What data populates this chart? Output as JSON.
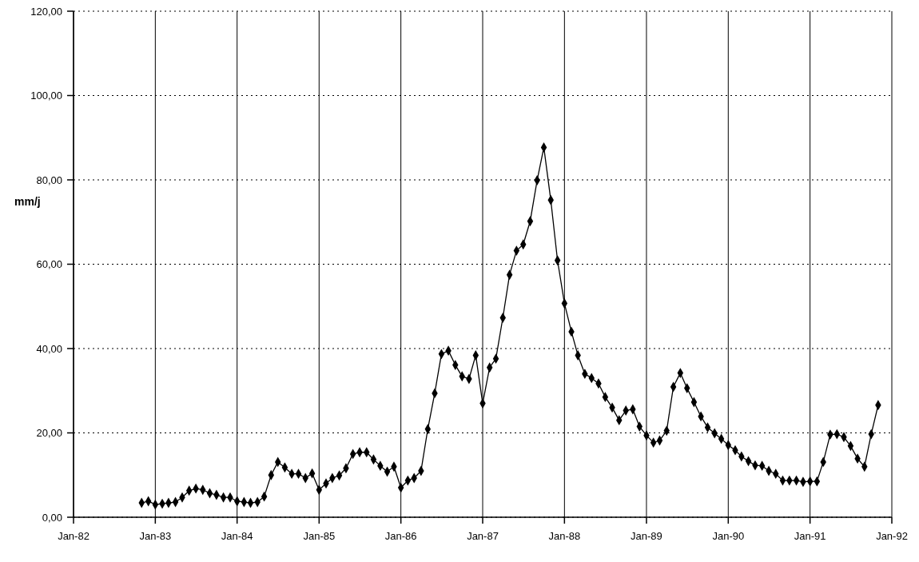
{
  "chart_data": {
    "type": "line",
    "ylabel": "mm/j",
    "x": [
      "1982-11",
      "1982-12",
      "1983-01",
      "1983-02",
      "1983-03",
      "1983-04",
      "1983-05",
      "1983-06",
      "1983-07",
      "1983-08",
      "1983-09",
      "1983-10",
      "1983-11",
      "1983-12",
      "1984-01",
      "1984-02",
      "1984-03",
      "1984-04",
      "1984-05",
      "1984-06",
      "1984-07",
      "1984-08",
      "1984-09",
      "1984-10",
      "1984-11",
      "1984-12",
      "1985-01",
      "1985-02",
      "1985-03",
      "1985-04",
      "1985-05",
      "1985-06",
      "1985-07",
      "1985-08",
      "1985-09",
      "1985-10",
      "1985-11",
      "1985-12",
      "1986-01",
      "1986-02",
      "1986-03",
      "1986-04",
      "1986-05",
      "1986-06",
      "1986-07",
      "1986-08",
      "1986-09",
      "1986-10",
      "1986-11",
      "1986-12",
      "1987-01",
      "1987-02",
      "1987-03",
      "1987-04",
      "1987-05",
      "1987-06",
      "1987-07",
      "1987-08",
      "1987-09",
      "1987-10",
      "1987-11",
      "1987-12",
      "1988-01",
      "1988-02",
      "1988-03",
      "1988-04",
      "1988-05",
      "1988-06",
      "1988-07",
      "1988-08",
      "1988-09",
      "1988-10",
      "1988-11",
      "1988-12",
      "1989-01",
      "1989-02",
      "1989-03",
      "1989-04",
      "1989-05",
      "1989-06",
      "1989-07",
      "1989-08",
      "1989-09",
      "1989-10",
      "1989-11",
      "1989-12",
      "1990-01",
      "1990-02",
      "1990-03",
      "1990-04",
      "1990-05",
      "1990-06",
      "1990-07",
      "1990-08",
      "1990-09",
      "1990-10",
      "1990-11",
      "1990-12",
      "1991-01",
      "1991-02",
      "1991-03",
      "1991-04",
      "1991-05",
      "1991-06",
      "1991-07",
      "1991-08",
      "1991-09",
      "1991-10",
      "1991-11"
    ],
    "series": [
      {
        "color": "#000000",
        "values": [
          3.4,
          3.8,
          3.0,
          3.2,
          3.4,
          3.6,
          4.7,
          6.3,
          6.8,
          6.5,
          5.7,
          5.3,
          4.7,
          4.7,
          3.8,
          3.6,
          3.4,
          3.6,
          4.9,
          10.0,
          13.1,
          11.8,
          10.3,
          10.3,
          9.3,
          10.4,
          6.5,
          8.0,
          9.3,
          9.9,
          11.6,
          15.0,
          15.4,
          15.4,
          13.7,
          12.2,
          10.8,
          12.0,
          7.0,
          8.7,
          9.3,
          11.0,
          20.9,
          29.4,
          38.7,
          39.5,
          36.1,
          33.4,
          32.8,
          38.4,
          27.0,
          35.5,
          37.6,
          47.3,
          57.5,
          63.2,
          64.7,
          70.2,
          79.9,
          87.7,
          75.2,
          60.9,
          50.7,
          44.0,
          38.4,
          34.0,
          33.0,
          31.7,
          28.5,
          26.0,
          23.0,
          25.3,
          25.6,
          21.5,
          19.4,
          17.7,
          18.2,
          20.5,
          30.9,
          34.2,
          30.6,
          27.3,
          23.9,
          21.3,
          19.9,
          18.6,
          17.1,
          15.9,
          14.4,
          13.3,
          12.3,
          12.2,
          11.0,
          10.3,
          8.7,
          8.7,
          8.7,
          8.4,
          8.5,
          8.5,
          13.1,
          19.6,
          19.7,
          19.0,
          16.9,
          13.9,
          12.0,
          19.7,
          26.6
        ]
      }
    ],
    "xlim": [
      "1982-01",
      "1992-01"
    ],
    "xticks": [
      {
        "value": "1982-01",
        "label": "Jan-82"
      },
      {
        "value": "1983-01",
        "label": "Jan-83"
      },
      {
        "value": "1984-01",
        "label": "Jan-84"
      },
      {
        "value": "1985-01",
        "label": "Jan-85"
      },
      {
        "value": "1986-01",
        "label": "Jan-86"
      },
      {
        "value": "1987-01",
        "label": "Jan-87"
      },
      {
        "value": "1988-01",
        "label": "Jan-88"
      },
      {
        "value": "1989-01",
        "label": "Jan-89"
      },
      {
        "value": "1990-01",
        "label": "Jan-90"
      },
      {
        "value": "1991-01",
        "label": "Jan-91"
      },
      {
        "value": "1992-01",
        "label": "Jan-92"
      }
    ],
    "ylim": [
      0,
      120
    ],
    "yticks": [
      {
        "value": 0,
        "label": "0,00"
      },
      {
        "value": 20,
        "label": "20,00"
      },
      {
        "value": 40,
        "label": "40,00"
      },
      {
        "value": 60,
        "label": "60,00"
      },
      {
        "value": 80,
        "label": "80,00"
      },
      {
        "value": 100,
        "label": "100,00"
      },
      {
        "value": 120,
        "label": "120,00"
      }
    ],
    "grid": true,
    "marker": "diamond",
    "line_style": "solid"
  }
}
